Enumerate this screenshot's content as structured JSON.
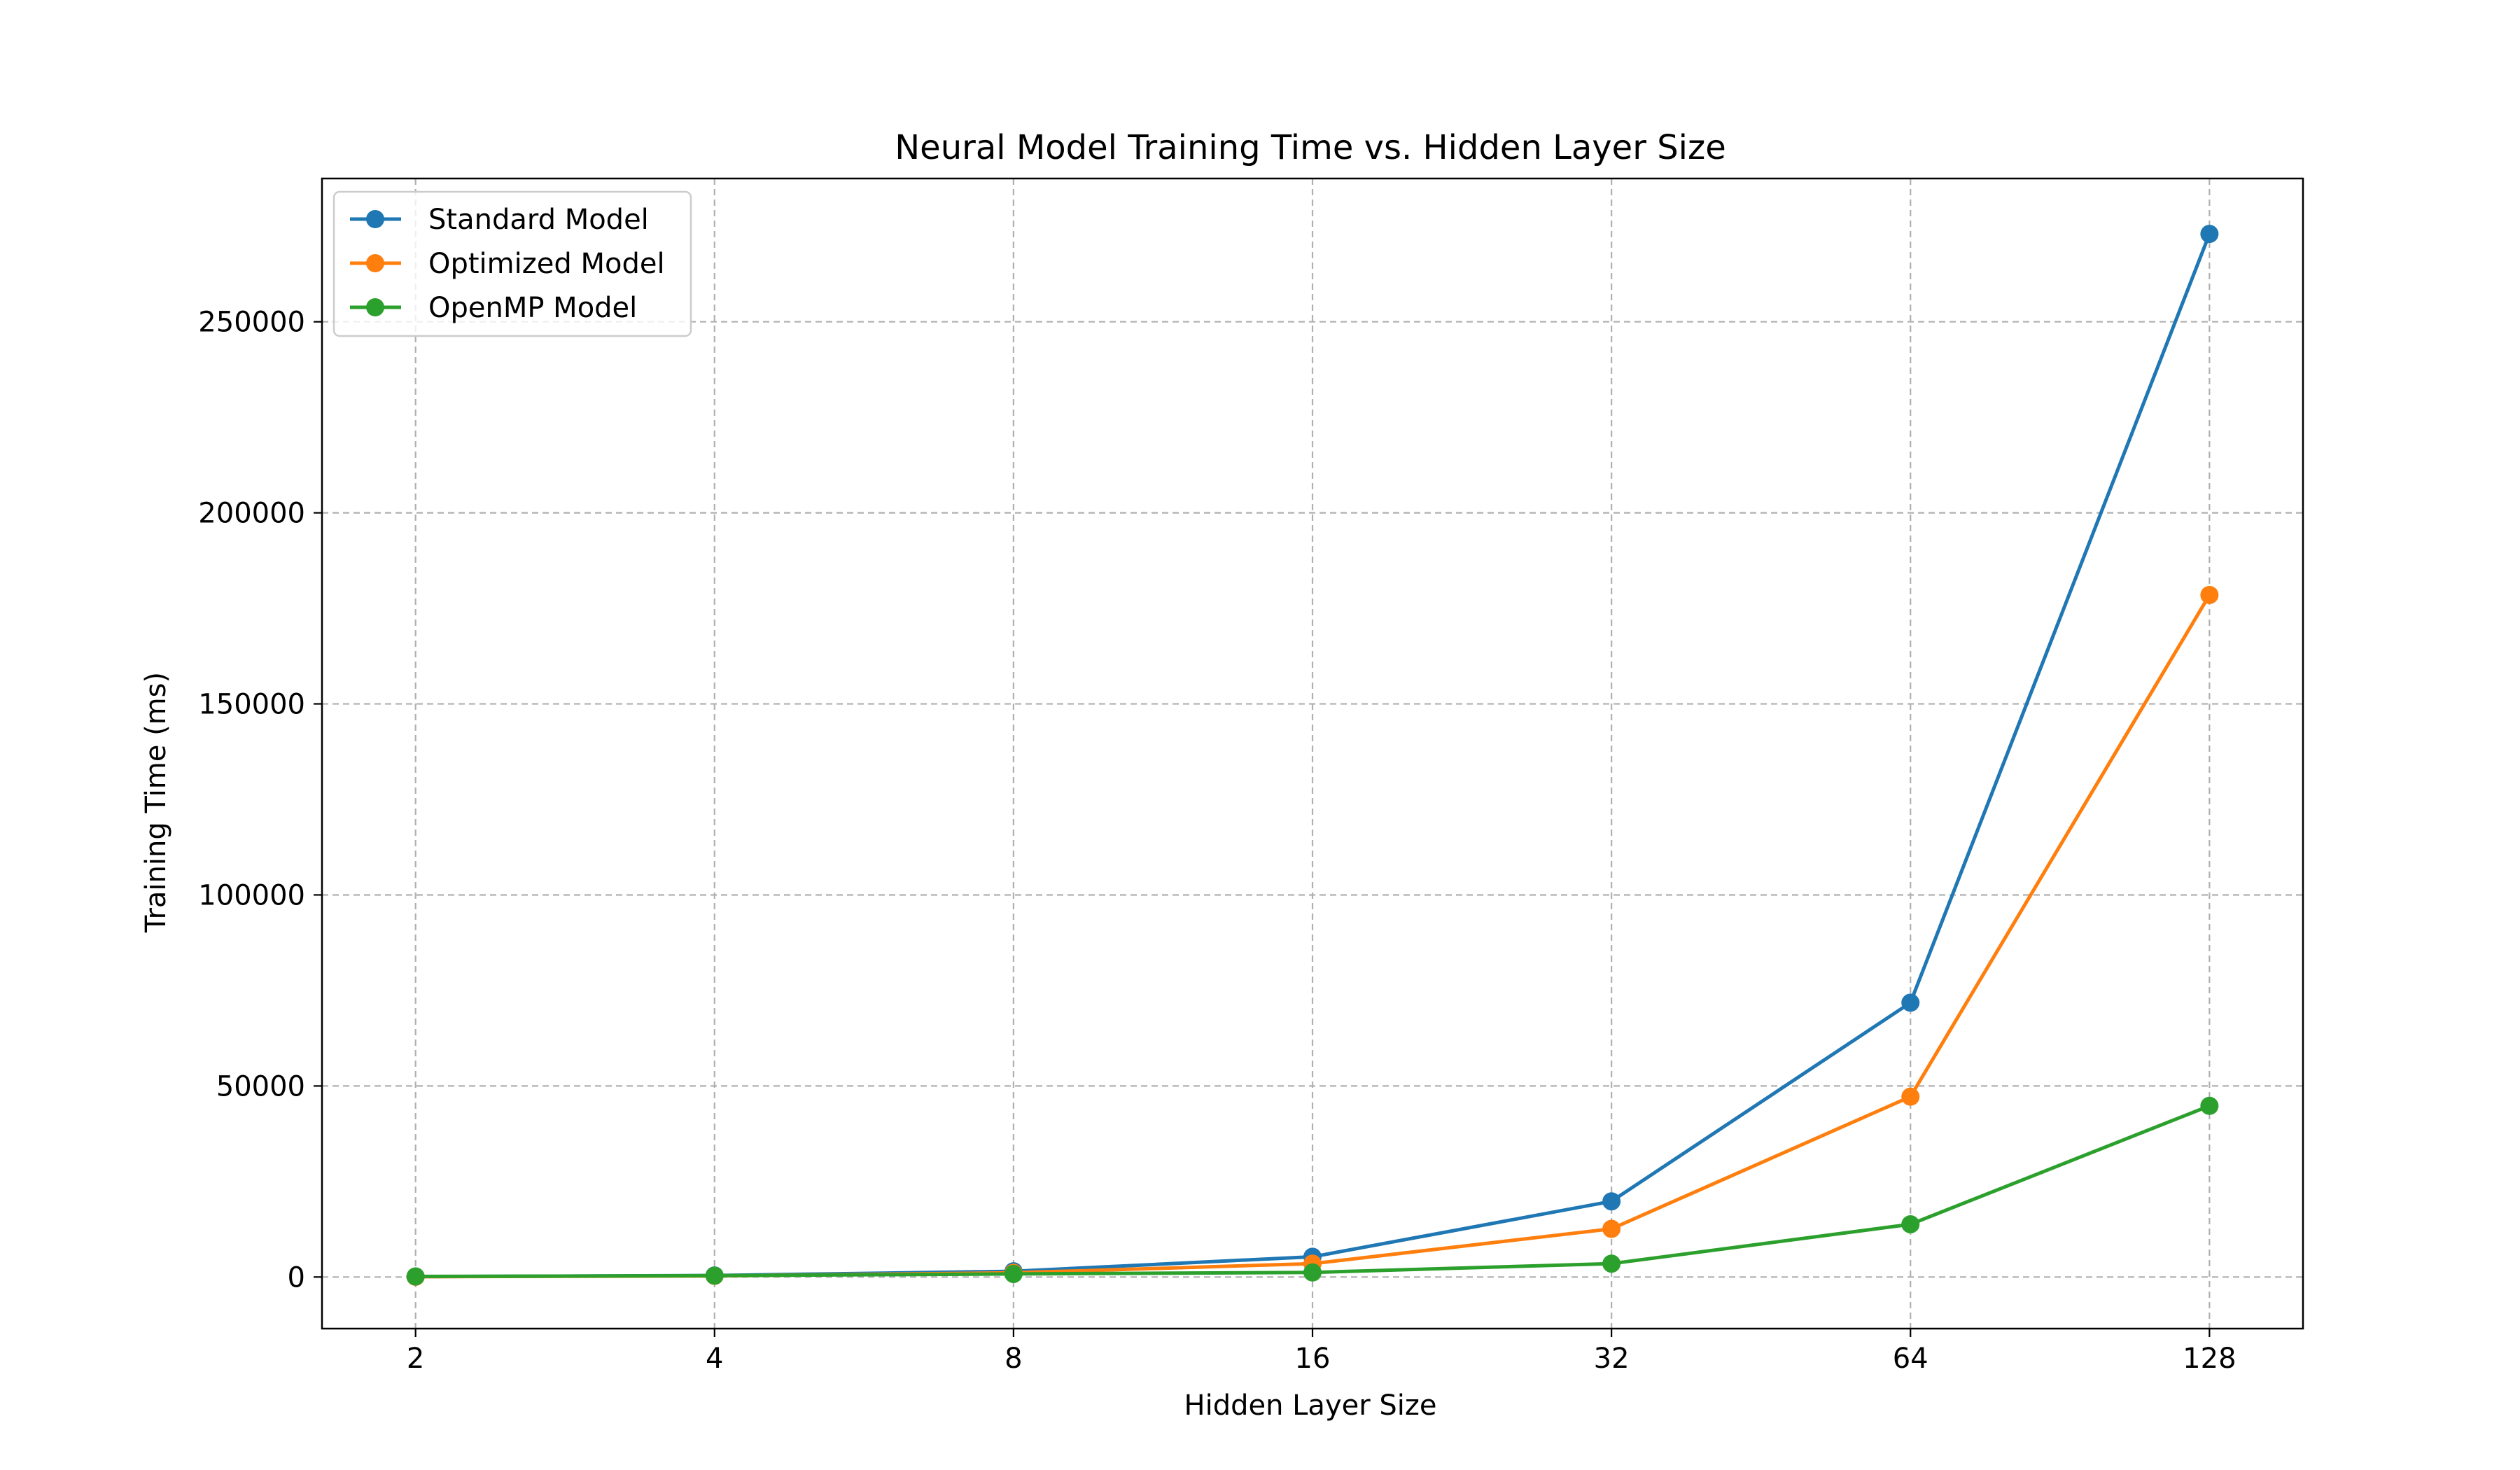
{
  "chart_data": {
    "type": "line",
    "title": "Neural Model Training Time vs. Hidden Layer Size",
    "xlabel": "Hidden Layer Size",
    "ylabel": "Training Time (ms)",
    "x_scale": "log2",
    "x": [
      2,
      4,
      8,
      16,
      32,
      64,
      128
    ],
    "x_tick_labels": [
      "2",
      "4",
      "8",
      "16",
      "32",
      "64",
      "128"
    ],
    "y_ticks": [
      0,
      50000,
      100000,
      150000,
      200000,
      250000
    ],
    "y_tick_labels": [
      "0",
      "50000",
      "100000",
      "150000",
      "200000",
      "250000"
    ],
    "ylim": [
      -13500,
      287500
    ],
    "xlim": [
      1.61,
      159
    ],
    "grid": true,
    "legend_position": "upper-left",
    "series": [
      {
        "name": "Standard Model",
        "color": "#1f77b4",
        "values": [
          100,
          400,
          1500,
          5300,
          19800,
          71800,
          273000
        ]
      },
      {
        "name": "Optimized Model",
        "color": "#ff7f0e",
        "values": [
          80,
          300,
          1100,
          3500,
          12600,
          47200,
          178500
        ]
      },
      {
        "name": "OpenMP Model",
        "color": "#2ca02c",
        "values": [
          150,
          350,
          800,
          1200,
          3500,
          13800,
          44800
        ]
      }
    ]
  }
}
